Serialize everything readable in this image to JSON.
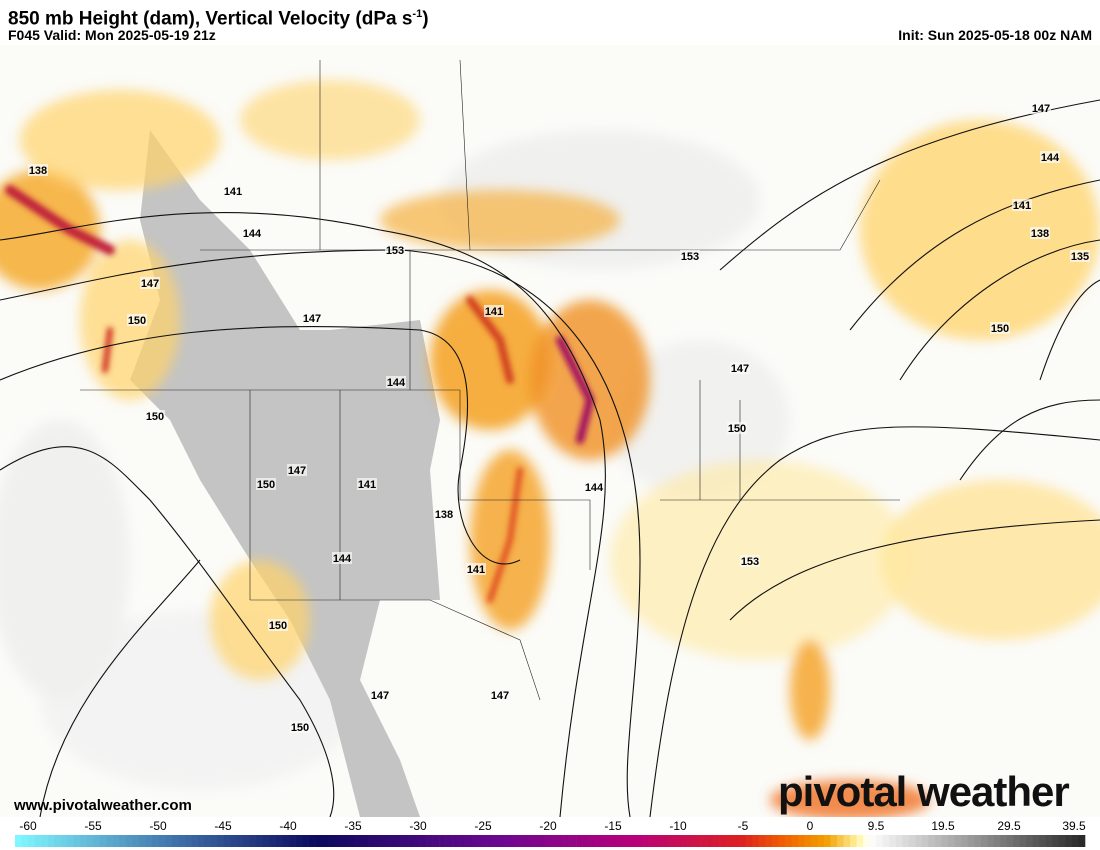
{
  "header": {
    "title": "850 mb Height (dam), Vertical Velocity (dPa s",
    "title_sup": "-1",
    "title_end": ")",
    "valid": "F045 Valid: Mon 2025-05-19 21z",
    "init": "Init: Sun 2025-05-18 00z NAM"
  },
  "footer": {
    "website": "www.pivotalweather.com",
    "logo": "pivotal weather"
  },
  "contour_labels": [
    "138",
    "141",
    "144",
    "147",
    "150",
    "147",
    "150",
    "153",
    "147",
    "150",
    "141",
    "144",
    "147",
    "141",
    "138",
    "144",
    "141",
    "144",
    "147",
    "150",
    "153",
    "150",
    "147",
    "150",
    "147",
    "144",
    "141",
    "138",
    "135",
    "150",
    "153"
  ],
  "colorbar": {
    "ticks": [
      "-60",
      "-55",
      "-50",
      "-45",
      "-40",
      "-35",
      "-30",
      "-25",
      "-20",
      "-15",
      "-10",
      "-5",
      "0",
      "9.5",
      "19.5",
      "29.5",
      "39.5"
    ],
    "colors": {
      "ascent_strong": "#7ff7ff",
      "blue": "#3f6fa8",
      "navy": "#0b0a5e",
      "purple": "#6a0890",
      "magenta": "#b8007a",
      "red": "#dc2020",
      "orange": "#f2a000",
      "yellow": "#fff6a8",
      "descent": "#2a2a2a"
    }
  }
}
